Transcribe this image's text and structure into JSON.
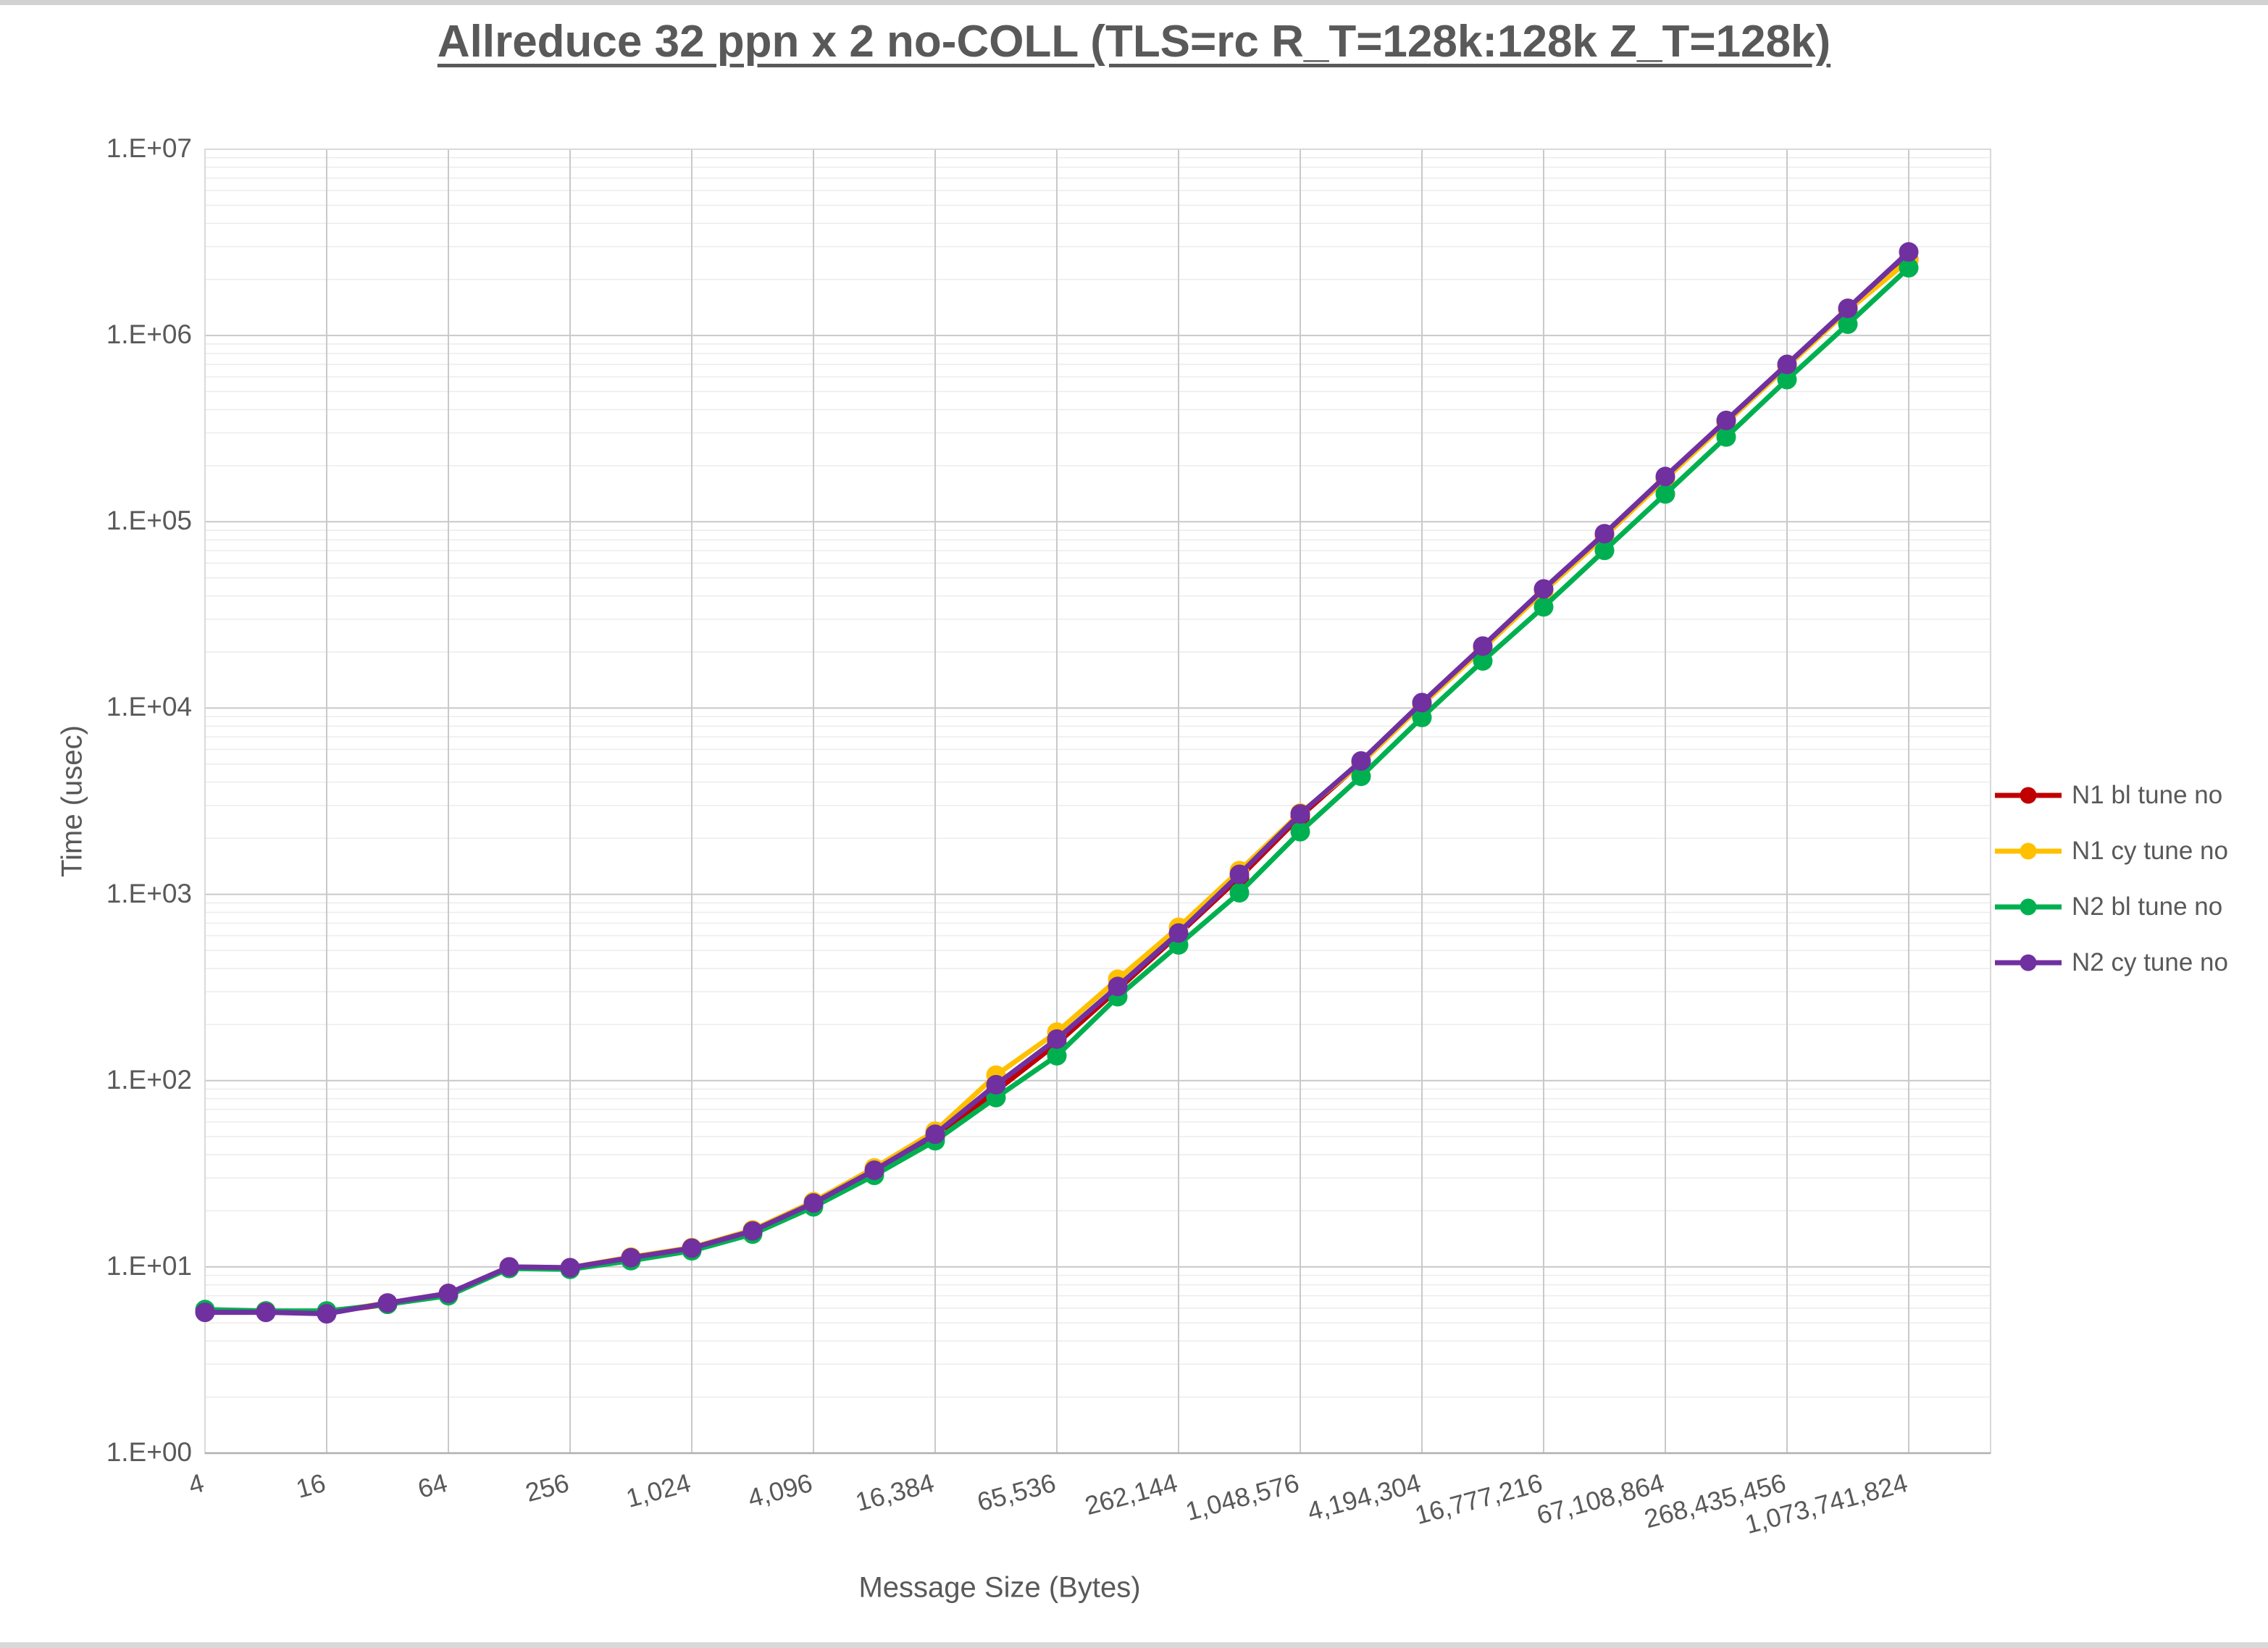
{
  "title": {
    "text": "Allreduce 32 ppn x 2 no-COLL (TLS=rc R_T=128k:128k Z_T=128k)"
  },
  "y_axis": {
    "title": "Time (usec)",
    "tick_labels": [
      "1.E+00",
      "1.E+01",
      "1.E+02",
      "1.E+03",
      "1.E+04",
      "1.E+05",
      "1.E+06",
      "1.E+07"
    ]
  },
  "x_axis": {
    "title": "Message Size (Bytes)",
    "tick_labels": [
      "4",
      "16",
      "64",
      "256",
      "1,024",
      "4,096",
      "16,384",
      "65,536",
      "262,144",
      "1,048,576",
      "4,194,304",
      "16,777,216",
      "67,108,864",
      "268,435,456",
      "1,073,741,824"
    ]
  },
  "legend": {
    "position": "right",
    "items": [
      {
        "label": "N1 bl tune no",
        "color": "#C00000"
      },
      {
        "label": "N1 cy tune no",
        "color": "#FFC000"
      },
      {
        "label": "N2 bl tune no",
        "color": "#00B050"
      },
      {
        "label": "N2 cy tune no",
        "color": "#7030A0"
      }
    ]
  },
  "chart_data": {
    "type": "line",
    "x_scale": "log2",
    "y_scale": "log10",
    "title": "Allreduce 32 ppn x 2 no-COLL (TLS=rc R_T=128k:128k Z_T=128k)",
    "xlabel": "Message Size (Bytes)",
    "ylabel": "Time (usec)",
    "ylim": [
      1,
      10000000
    ],
    "xlim": [
      4,
      1073741824
    ],
    "grid": true,
    "legend_position": "right",
    "x": [
      4,
      8,
      16,
      32,
      64,
      128,
      256,
      512,
      1024,
      2048,
      4096,
      8192,
      16384,
      32768,
      65536,
      131072,
      262144,
      524288,
      1048576,
      2097152,
      4194304,
      8388608,
      16777216,
      33554432,
      67108864,
      134217728,
      268435456,
      536870912,
      1073741824
    ],
    "series": [
      {
        "name": "N1 bl tune no",
        "color": "#C00000",
        "values": [
          5.8,
          5.8,
          5.7,
          6.3,
          7.1,
          9.9,
          9.8,
          11.0,
          12.4,
          15.3,
          21.6,
          32.2,
          49.8,
          88,
          158,
          308,
          610,
          1230,
          2620,
          5100,
          10500,
          21000,
          42800,
          84500,
          171000,
          343000,
          688000,
          1375000,
          2560000
        ]
      },
      {
        "name": "N1 cy tune no",
        "color": "#FFC000",
        "values": [
          5.8,
          5.8,
          5.7,
          6.4,
          7.2,
          10.0,
          9.9,
          11.3,
          12.7,
          15.8,
          22.4,
          34.0,
          53.5,
          107,
          182,
          350,
          665,
          1340,
          2730,
          5050,
          10400,
          20800,
          42200,
          83500,
          169500,
          340000,
          682000,
          1362000,
          2535000
        ]
      },
      {
        "name": "N2 bl tune no",
        "color": "#00B050",
        "values": [
          5.9,
          5.8,
          5.8,
          6.3,
          7.0,
          9.8,
          9.7,
          10.8,
          12.2,
          15.0,
          21.0,
          31.0,
          47.5,
          81,
          136,
          282,
          535,
          1020,
          2170,
          4300,
          8900,
          17900,
          34900,
          70200,
          141000,
          285000,
          580000,
          1150000,
          2310000
        ]
      },
      {
        "name": "N2 cy tune no",
        "color": "#7030A0",
        "values": [
          5.7,
          5.7,
          5.6,
          6.4,
          7.2,
          10.0,
          9.9,
          11.2,
          12.6,
          15.6,
          22.0,
          33.0,
          51.5,
          95,
          167,
          320,
          620,
          1280,
          2700,
          5200,
          10700,
          21500,
          43600,
          86300,
          175000,
          350000,
          700000,
          1400000,
          2810000
        ]
      }
    ]
  }
}
